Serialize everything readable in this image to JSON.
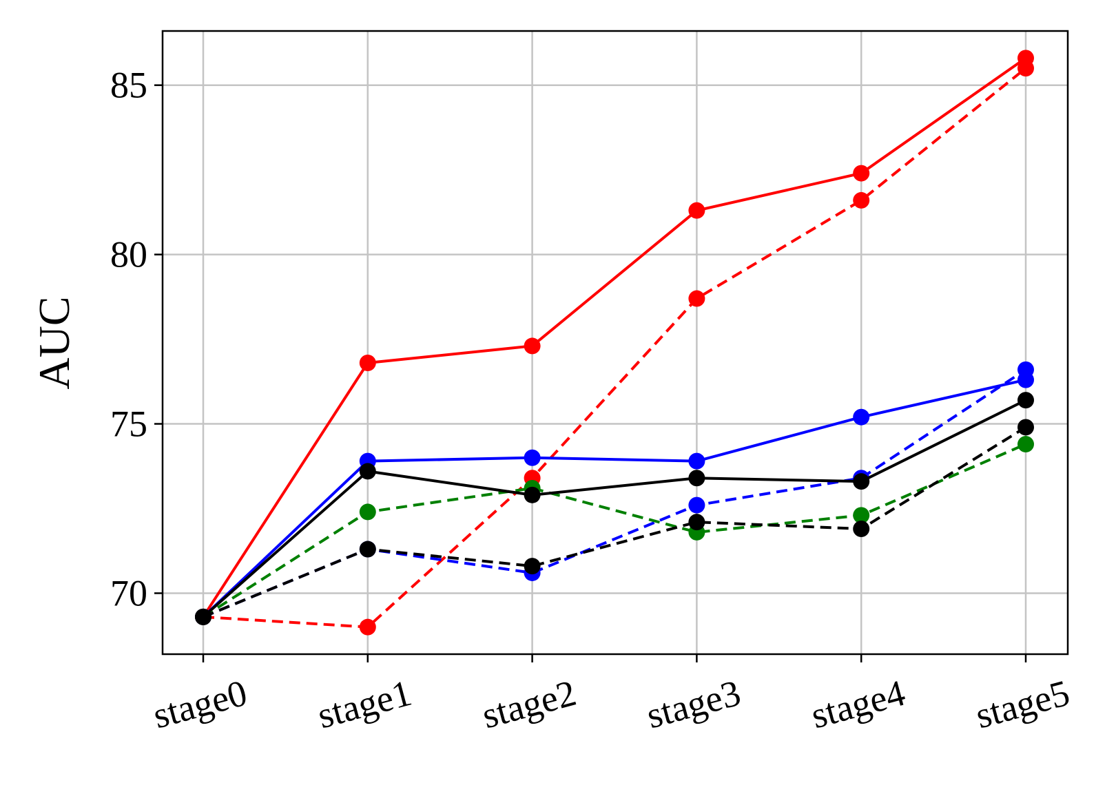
{
  "chart_data": {
    "type": "line",
    "title": "",
    "xlabel": "",
    "ylabel": "AUC",
    "categories": [
      "stage0",
      "stage1",
      "stage2",
      "stage3",
      "stage4",
      "stage5"
    ],
    "y_ticks": [
      70,
      75,
      80,
      85
    ],
    "ylim": [
      68.2,
      86.6
    ],
    "grid": true,
    "legend": "none",
    "series": [
      {
        "color": "#ff0000",
        "linestyle": "solid",
        "values": [
          69.3,
          76.8,
          77.3,
          81.3,
          82.4,
          85.8
        ]
      },
      {
        "color": "#ff0000",
        "linestyle": "dashed",
        "values": [
          69.3,
          69.0,
          73.4,
          78.7,
          81.6,
          85.5
        ]
      },
      {
        "color": "#0000ff",
        "linestyle": "solid",
        "values": [
          69.3,
          73.9,
          74.0,
          73.9,
          75.2,
          76.3
        ]
      },
      {
        "color": "#0000ff",
        "linestyle": "dashed",
        "values": [
          69.3,
          71.3,
          70.6,
          72.6,
          73.4,
          76.6
        ]
      },
      {
        "color": "#008000",
        "linestyle": "dashed",
        "values": [
          69.3,
          72.4,
          73.1,
          71.8,
          72.3,
          74.4
        ]
      },
      {
        "color": "#000000",
        "linestyle": "solid",
        "values": [
          69.3,
          73.6,
          72.9,
          73.4,
          73.3,
          75.7
        ]
      },
      {
        "color": "#000000",
        "linestyle": "dashed",
        "values": [
          69.3,
          71.3,
          70.8,
          72.1,
          71.9,
          74.9
        ]
      }
    ]
  }
}
